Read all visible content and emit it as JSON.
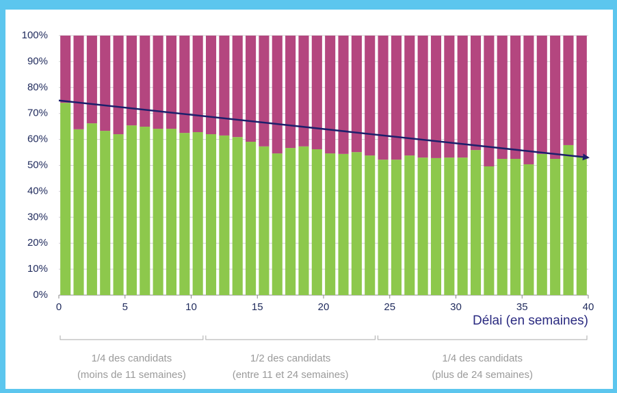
{
  "chart_data": {
    "type": "stacked_bar",
    "x": [
      0.5,
      1.5,
      2.5,
      3.5,
      4.5,
      5.5,
      6.5,
      7.5,
      8.5,
      9.5,
      10.5,
      11.5,
      12.5,
      13.5,
      14.5,
      15.5,
      16.5,
      17.5,
      18.5,
      19.5,
      20.5,
      21.5,
      22.5,
      23.5,
      24.5,
      25.5,
      26.5,
      27.5,
      28.5,
      29.5,
      30.5,
      31.5,
      32.5,
      33.5,
      34.5,
      35.5,
      36.5,
      37.5,
      38.5,
      39.5
    ],
    "series": [
      {
        "color": "#8dc84c",
        "values": [
          74.1,
          63.9,
          66.2,
          63.3,
          62,
          65.4,
          64.9,
          64.1,
          64.1,
          62.5,
          62.8,
          62,
          61.5,
          60.9,
          59.1,
          57.3,
          54.6,
          56.7,
          57.3,
          56.2,
          54.6,
          54.4,
          55.1,
          53.8,
          52.2,
          52.2,
          53.8,
          53,
          52.8,
          53,
          53,
          55.9,
          49.6,
          52.5,
          52.5,
          50.4,
          54.4,
          52.5,
          57.8,
          53.6
        ]
      },
      {
        "color": "#b4467f",
        "values": [
          25.9,
          36.1,
          33.8,
          36.7,
          38,
          34.6,
          35.1,
          35.9,
          35.9,
          37.5,
          37.2,
          38,
          38.5,
          39.1,
          40.9,
          42.7,
          45.4,
          43.3,
          42.7,
          43.8,
          45.4,
          45.6,
          44.9,
          46.2,
          47.8,
          47.8,
          46.2,
          47,
          47.2,
          47,
          47,
          44.1,
          50.4,
          47.5,
          47.5,
          49.6,
          45.6,
          47.5,
          42.2,
          46.4
        ]
      }
    ],
    "trend": {
      "color": "#1c1f6b",
      "x": [
        0,
        40
      ],
      "y": [
        75,
        53
      ]
    },
    "xlim": [
      0,
      40
    ],
    "xticks": [
      0,
      5,
      10,
      15,
      20,
      25,
      30,
      35,
      40
    ],
    "ylim": [
      0,
      100
    ],
    "yticks": [
      {
        "value": 0,
        "label": "0%"
      },
      {
        "value": 10,
        "label": "10%"
      },
      {
        "value": 20,
        "label": "20%"
      },
      {
        "value": 30,
        "label": "30%"
      },
      {
        "value": 40,
        "label": "40%"
      },
      {
        "value": 50,
        "label": "50%"
      },
      {
        "value": 60,
        "label": "60%"
      },
      {
        "value": 70,
        "label": "70%"
      },
      {
        "value": 80,
        "label": "80%"
      },
      {
        "value": 90,
        "label": "90%"
      },
      {
        "value": 100,
        "label": "100%"
      }
    ],
    "grid": true,
    "x_label": "Délai (en semaines)",
    "groups": [
      {
        "from": 0,
        "to": 11,
        "label": "1/4 des candidats",
        "sublabel": "(moins de 11 semaines)"
      },
      {
        "from": 11,
        "to": 24,
        "label": "1/2 des candidats",
        "sublabel": "(entre 11 et 24 semaines)"
      },
      {
        "from": 24,
        "to": 40,
        "label": "1/4 des candidats",
        "sublabel": "(plus de 24 semaines)"
      }
    ]
  }
}
